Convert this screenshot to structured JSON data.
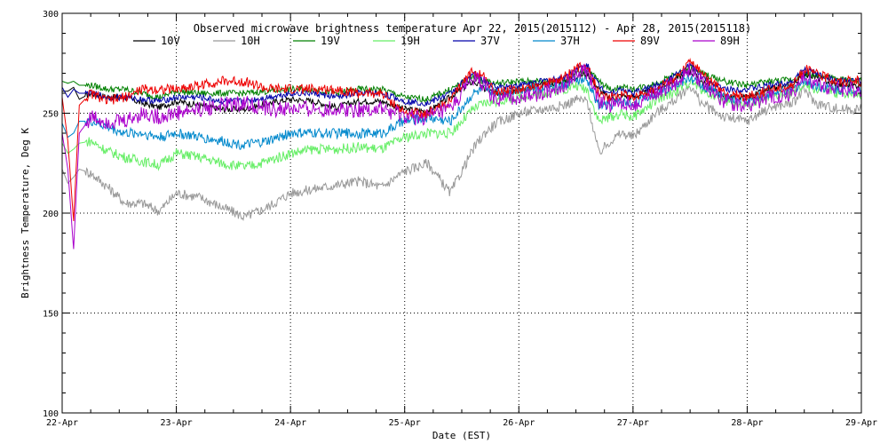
{
  "chart_data": {
    "type": "line",
    "title": "Observed microwave brightness temperature Apr 22, 2015(2015112) - Apr 28, 2015(2015118)",
    "xlabel": "Date (EST)",
    "ylabel": "Brightness Temperature, Deg K",
    "xlim": [
      0,
      7
    ],
    "ylim": [
      100,
      300
    ],
    "x_ticks": [
      0,
      1,
      2,
      3,
      4,
      5,
      6,
      7
    ],
    "x_tick_labels": [
      "22-Apr",
      "23-Apr",
      "24-Apr",
      "25-Apr",
      "26-Apr",
      "27-Apr",
      "28-Apr",
      "29-Apr"
    ],
    "y_ticks": [
      100,
      150,
      200,
      250,
      300
    ],
    "y_tick_labels": [
      "100",
      "150",
      "200",
      "250",
      "300"
    ],
    "grid": true,
    "legend_position": "top",
    "x": [
      0,
      0.05,
      0.1,
      0.15,
      0.25,
      0.4,
      0.55,
      0.7,
      0.85,
      1.0,
      1.2,
      1.4,
      1.6,
      1.8,
      2.0,
      2.2,
      2.4,
      2.6,
      2.8,
      3.0,
      3.2,
      3.4,
      3.6,
      3.7,
      3.8,
      4.0,
      4.2,
      4.4,
      4.5,
      4.6,
      4.7,
      4.8,
      4.9,
      5.0,
      5.2,
      5.4,
      5.5,
      5.6,
      5.8,
      6.0,
      6.2,
      6.4,
      6.5,
      6.6,
      6.8,
      7.0
    ],
    "series": [
      {
        "name": "10V",
        "color": "#000000",
        "values": [
          261,
          261,
          263,
          257,
          260,
          258,
          258,
          255,
          253,
          256,
          254,
          252,
          252,
          255,
          257,
          256,
          253,
          256,
          256,
          252,
          251,
          258,
          266,
          262,
          260,
          262,
          264,
          266,
          268,
          270,
          262,
          257,
          259,
          258,
          262,
          268,
          271,
          266,
          258,
          258,
          262,
          264,
          270,
          268,
          264,
          264
        ]
      },
      {
        "name": "10H",
        "color": "#999999",
        "values": [
          222,
          215,
          218,
          222,
          220,
          213,
          205,
          205,
          201,
          210,
          208,
          203,
          198,
          203,
          210,
          212,
          214,
          216,
          213,
          221,
          225,
          210,
          232,
          240,
          245,
          250,
          252,
          254,
          257,
          256,
          230,
          236,
          240,
          238,
          250,
          258,
          264,
          255,
          248,
          246,
          253,
          255,
          262,
          255,
          252,
          252
        ]
      },
      {
        "name": "19V",
        "color": "#008000",
        "values": [
          266,
          265,
          266,
          264,
          264,
          262,
          262,
          260,
          258,
          261,
          260,
          260,
          260,
          261,
          262,
          262,
          260,
          262,
          262,
          258,
          257,
          262,
          268,
          266,
          265,
          266,
          266,
          266,
          270,
          272,
          266,
          262,
          263,
          262,
          265,
          270,
          273,
          270,
          266,
          264,
          266,
          267,
          270,
          269,
          267,
          266
        ]
      },
      {
        "name": "19H",
        "color": "#66ee66",
        "values": [
          235,
          230,
          232,
          235,
          236,
          231,
          228,
          226,
          224,
          230,
          228,
          225,
          223,
          226,
          230,
          232,
          232,
          233,
          232,
          238,
          240,
          240,
          252,
          255,
          256,
          258,
          260,
          262,
          264,
          262,
          246,
          248,
          250,
          248,
          256,
          262,
          266,
          262,
          256,
          254,
          258,
          260,
          264,
          262,
          260,
          260
        ]
      },
      {
        "name": "37V",
        "color": "#0000aa",
        "values": [
          263,
          258,
          262,
          260,
          260,
          258,
          258,
          257,
          256,
          258,
          258,
          256,
          256,
          258,
          260,
          260,
          258,
          260,
          260,
          256,
          255,
          260,
          270,
          266,
          263,
          264,
          266,
          268,
          272,
          274,
          264,
          260,
          262,
          260,
          264,
          270,
          274,
          268,
          262,
          262,
          264,
          266,
          272,
          270,
          266,
          266
        ]
      },
      {
        "name": "37H",
        "color": "#0088cc",
        "values": [
          245,
          238,
          240,
          246,
          246,
          243,
          240,
          240,
          238,
          240,
          238,
          236,
          234,
          236,
          240,
          240,
          240,
          240,
          240,
          246,
          248,
          246,
          260,
          262,
          260,
          262,
          263,
          264,
          267,
          266,
          254,
          254,
          256,
          255,
          260,
          265,
          268,
          264,
          258,
          256,
          260,
          262,
          266,
          264,
          262,
          262
        ]
      },
      {
        "name": "89V",
        "color": "#ee0000",
        "values": [
          258,
          236,
          196,
          254,
          260,
          256,
          258,
          262,
          262,
          262,
          264,
          266,
          266,
          262,
          262,
          262,
          262,
          260,
          260,
          250,
          250,
          256,
          272,
          268,
          260,
          262,
          264,
          268,
          272,
          274,
          260,
          258,
          260,
          258,
          262,
          268,
          276,
          270,
          260,
          258,
          262,
          264,
          272,
          270,
          266,
          266
        ]
      },
      {
        "name": "89H",
        "color": "#aa00cc",
        "values": [
          240,
          222,
          182,
          240,
          248,
          246,
          246,
          250,
          248,
          250,
          252,
          254,
          255,
          252,
          252,
          252,
          252,
          252,
          252,
          248,
          248,
          252,
          268,
          264,
          256,
          258,
          260,
          264,
          270,
          271,
          256,
          254,
          256,
          254,
          260,
          266,
          272,
          266,
          256,
          254,
          258,
          260,
          268,
          265,
          262,
          262
        ]
      }
    ]
  }
}
